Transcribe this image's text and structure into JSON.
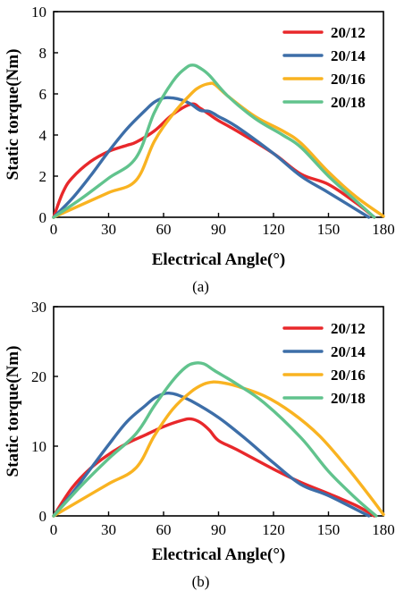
{
  "chart_data": [
    {
      "type": "line",
      "caption": "(a)",
      "xlabel": "Electrical Angle(°)",
      "ylabel": "Static torque(Nm)",
      "xlim": [
        0,
        180
      ],
      "ylim": [
        0,
        10
      ],
      "xticks": [
        0,
        30,
        60,
        90,
        120,
        150,
        180
      ],
      "yticks": [
        0,
        2,
        4,
        6,
        8,
        10
      ],
      "grid": false,
      "legend_position": "top-right",
      "series": [
        {
          "name": "20/12",
          "color": "#e8282b",
          "x": [
            0,
            5,
            10,
            20,
            30,
            40,
            45,
            55,
            65,
            75,
            80,
            85,
            90,
            100,
            120,
            135,
            150,
            165,
            175
          ],
          "y": [
            0,
            1.2,
            1.9,
            2.7,
            3.2,
            3.5,
            3.65,
            4.2,
            5.0,
            5.5,
            5.3,
            5.0,
            4.7,
            4.2,
            3.1,
            2.1,
            1.6,
            0.7,
            0
          ]
        },
        {
          "name": "20/14",
          "color": "#3d6ea8",
          "x": [
            0,
            10,
            20,
            30,
            40,
            50,
            55,
            60,
            65,
            70,
            75,
            80,
            85,
            90,
            100,
            120,
            135,
            150,
            172
          ],
          "y": [
            0,
            0.9,
            2.0,
            3.2,
            4.3,
            5.2,
            5.6,
            5.8,
            5.8,
            5.7,
            5.5,
            5.2,
            5.15,
            4.9,
            4.4,
            3.1,
            2.0,
            1.2,
            0
          ]
        },
        {
          "name": "20/16",
          "color": "#f9b321",
          "x": [
            0,
            15,
            30,
            45,
            55,
            65,
            75,
            80,
            85,
            88,
            95,
            110,
            125,
            135,
            150,
            165,
            180
          ],
          "y": [
            0,
            0.6,
            1.2,
            1.8,
            3.7,
            5.0,
            6.0,
            6.35,
            6.5,
            6.45,
            5.9,
            4.9,
            4.2,
            3.6,
            2.2,
            1.0,
            0.05
          ]
        },
        {
          "name": "20/18",
          "color": "#61c38d",
          "x": [
            0,
            15,
            30,
            45,
            55,
            65,
            72,
            76,
            80,
            85,
            95,
            110,
            125,
            135,
            150,
            165,
            175
          ],
          "y": [
            0,
            0.9,
            1.9,
            2.9,
            5.1,
            6.6,
            7.25,
            7.4,
            7.25,
            6.9,
            5.9,
            4.8,
            4.0,
            3.4,
            2.0,
            0.8,
            0
          ]
        }
      ]
    },
    {
      "type": "line",
      "caption": "(b)",
      "xlabel": "Electrical Angle(°)",
      "ylabel": "Static torque(Nm)",
      "xlim": [
        0,
        180
      ],
      "ylim": [
        0,
        30
      ],
      "xticks": [
        0,
        30,
        60,
        90,
        120,
        150,
        180
      ],
      "yticks": [
        0,
        10,
        20,
        30
      ],
      "grid": false,
      "legend_position": "top-right",
      "series": [
        {
          "name": "20/12",
          "color": "#e8282b",
          "x": [
            0,
            10,
            20,
            30,
            40,
            50,
            60,
            70,
            75,
            80,
            85,
            90,
            100,
            120,
            135,
            150,
            165,
            175
          ],
          "y": [
            0,
            4.0,
            6.8,
            8.8,
            10.4,
            11.6,
            12.8,
            13.7,
            13.9,
            13.4,
            12.3,
            10.8,
            9.5,
            6.7,
            4.8,
            3.2,
            1.5,
            0
          ]
        },
        {
          "name": "20/14",
          "color": "#3d6ea8",
          "x": [
            0,
            10,
            20,
            30,
            40,
            50,
            55,
            60,
            63,
            67,
            75,
            90,
            105,
            120,
            135,
            150,
            172
          ],
          "y": [
            0,
            3.2,
            6.7,
            10.2,
            13.5,
            15.8,
            16.9,
            17.5,
            17.6,
            17.4,
            16.5,
            14.1,
            11.0,
            7.6,
            4.5,
            2.9,
            0
          ]
        },
        {
          "name": "20/16",
          "color": "#f9b321",
          "x": [
            0,
            15,
            30,
            45,
            55,
            65,
            75,
            82,
            87,
            92,
            100,
            115,
            130,
            145,
            160,
            172,
            180
          ],
          "y": [
            0,
            2.3,
            4.6,
            6.9,
            11.5,
            15.3,
            17.8,
            18.9,
            19.2,
            19.1,
            18.6,
            17.2,
            14.8,
            11.5,
            7.0,
            3.0,
            0.2
          ]
        },
        {
          "name": "20/18",
          "color": "#61c38d",
          "x": [
            0,
            15,
            30,
            45,
            55,
            65,
            72,
            77,
            82,
            88,
            100,
            115,
            135,
            150,
            165,
            176
          ],
          "y": [
            0,
            4.3,
            8.2,
            11.8,
            15.8,
            19.4,
            21.3,
            21.9,
            21.8,
            20.8,
            18.9,
            16.2,
            11.2,
            6.4,
            2.5,
            0
          ]
        }
      ]
    }
  ]
}
